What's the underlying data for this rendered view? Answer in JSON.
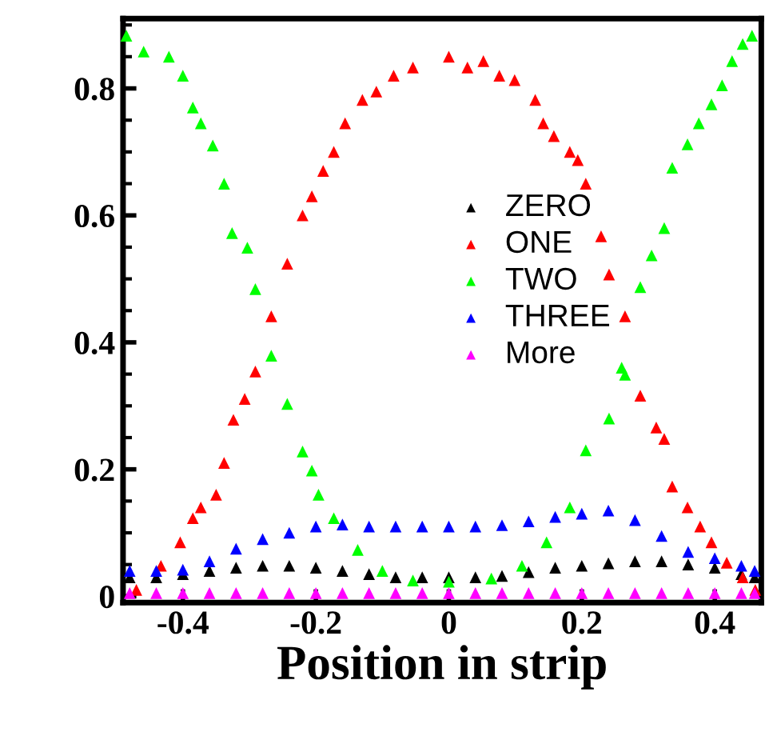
{
  "chart_data": {
    "type": "scatter",
    "xlabel": "Position in strip",
    "xlim": [
      -0.49,
      0.47
    ],
    "ylim": [
      -0.01,
      0.91
    ],
    "xticks": [
      -0.4,
      -0.2,
      0,
      0.2,
      0.4
    ],
    "yticks": [
      0,
      0.2,
      0.4,
      0.6,
      0.8
    ],
    "legend": "center",
    "marker": "triangle",
    "grid": false,
    "series": [
      {
        "name": "ZERO",
        "color": "#000000",
        "x": [
          -0.48,
          -0.44,
          -0.4,
          -0.36,
          -0.32,
          -0.28,
          -0.24,
          -0.2,
          -0.16,
          -0.12,
          -0.08,
          -0.04,
          0,
          0.04,
          0.08,
          0.12,
          0.16,
          0.2,
          0.24,
          0.28,
          0.32,
          0.36,
          0.4,
          0.44,
          0.46
        ],
        "values": [
          0.03,
          0.03,
          0.035,
          0.04,
          0.045,
          0.048,
          0.048,
          0.045,
          0.04,
          0.035,
          0.03,
          0.03,
          0.03,
          0.03,
          0.032,
          0.038,
          0.045,
          0.048,
          0.052,
          0.055,
          0.055,
          0.05,
          0.045,
          0.035,
          0.03
        ]
      },
      {
        "name": "ONE",
        "color": "#ff0000",
        "x": [
          -0.47,
          -0.433,
          -0.404,
          -0.385,
          -0.373,
          -0.35,
          -0.338,
          -0.324,
          -0.307,
          -0.291,
          -0.267,
          -0.243,
          -0.22,
          -0.206,
          -0.189,
          -0.173,
          -0.156,
          -0.13,
          -0.109,
          -0.083,
          -0.054,
          0,
          0.028,
          0.052,
          0.076,
          0.099,
          0.13,
          0.142,
          0.158,
          0.182,
          0.194,
          0.206,
          0.229,
          0.241,
          0.265,
          0.288,
          0.312,
          0.324,
          0.336,
          0.359,
          0.378,
          0.395,
          0.418,
          0.442,
          0.461
        ],
        "values": [
          0.01,
          0.048,
          0.085,
          0.123,
          0.14,
          0.16,
          0.21,
          0.278,
          0.311,
          0.354,
          0.441,
          0.524,
          0.6,
          0.63,
          0.67,
          0.7,
          0.745,
          0.782,
          0.795,
          0.82,
          0.833,
          0.85,
          0.833,
          0.843,
          0.82,
          0.813,
          0.782,
          0.745,
          0.725,
          0.7,
          0.687,
          0.65,
          0.567,
          0.507,
          0.441,
          0.316,
          0.266,
          0.248,
          0.173,
          0.14,
          0.11,
          0.085,
          0.053,
          0.03,
          0.01
        ]
      },
      {
        "name": "TWO",
        "color": "#00ff00",
        "x": [
          -0.485,
          -0.459,
          -0.421,
          -0.4,
          -0.385,
          -0.373,
          -0.355,
          -0.338,
          -0.326,
          -0.303,
          -0.291,
          -0.267,
          -0.243,
          -0.22,
          -0.206,
          -0.196,
          -0.173,
          -0.137,
          -0.1,
          -0.054,
          0,
          0.064,
          0.11,
          0.147,
          0.182,
          0.206,
          0.241,
          0.26,
          0.265,
          0.288,
          0.305,
          0.324,
          0.336,
          0.359,
          0.376,
          0.395,
          0.411,
          0.426,
          0.442,
          0.456
        ],
        "values": [
          0.883,
          0.858,
          0.85,
          0.82,
          0.77,
          0.745,
          0.71,
          0.65,
          0.572,
          0.549,
          0.484,
          0.379,
          0.303,
          0.228,
          0.198,
          0.16,
          0.123,
          0.073,
          0.04,
          0.025,
          0.023,
          0.028,
          0.048,
          0.085,
          0.14,
          0.23,
          0.28,
          0.36,
          0.349,
          0.487,
          0.537,
          0.58,
          0.675,
          0.712,
          0.745,
          0.775,
          0.805,
          0.843,
          0.87,
          0.883
        ]
      },
      {
        "name": "THREE",
        "color": "#0000ff",
        "x": [
          -0.48,
          -0.44,
          -0.4,
          -0.36,
          -0.32,
          -0.28,
          -0.24,
          -0.2,
          -0.16,
          -0.12,
          -0.08,
          -0.04,
          0,
          0.04,
          0.08,
          0.12,
          0.16,
          0.2,
          0.24,
          0.28,
          0.32,
          0.36,
          0.4,
          0.44,
          0.46
        ],
        "values": [
          0.04,
          0.04,
          0.042,
          0.055,
          0.075,
          0.09,
          0.1,
          0.11,
          0.113,
          0.11,
          0.11,
          0.11,
          0.11,
          0.11,
          0.112,
          0.118,
          0.125,
          0.13,
          0.135,
          0.12,
          0.095,
          0.07,
          0.06,
          0.048,
          0.04
        ]
      },
      {
        "name": "More",
        "color": "#ff00ff",
        "x": [
          -0.48,
          -0.44,
          -0.4,
          -0.36,
          -0.32,
          -0.28,
          -0.24,
          -0.2,
          -0.16,
          -0.12,
          -0.08,
          -0.04,
          0,
          0.04,
          0.08,
          0.12,
          0.16,
          0.2,
          0.24,
          0.28,
          0.32,
          0.36,
          0.4,
          0.44,
          0.46
        ],
        "values": [
          0.005,
          0.005,
          0.005,
          0.005,
          0.005,
          0.005,
          0.005,
          0.005,
          0.005,
          0.005,
          0.005,
          0.005,
          0.005,
          0.005,
          0.005,
          0.005,
          0.005,
          0.005,
          0.005,
          0.005,
          0.005,
          0.005,
          0.005,
          0.005,
          0.005
        ]
      }
    ]
  }
}
